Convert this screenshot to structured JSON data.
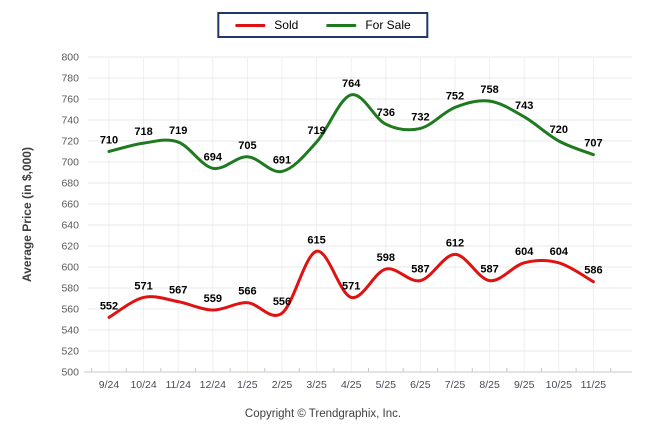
{
  "chart_data": {
    "type": "line",
    "title": "",
    "categories": [
      "9/24",
      "10/24",
      "11/24",
      "12/24",
      "1/25",
      "2/25",
      "3/25",
      "4/25",
      "5/25",
      "6/25",
      "7/25",
      "8/25",
      "9/25",
      "10/25",
      "11/25"
    ],
    "series": [
      {
        "name": "Sold",
        "color": "#e01111",
        "values": [
          552,
          571,
          567,
          559,
          566,
          556,
          615,
          571,
          598,
          587,
          612,
          587,
          604,
          604,
          586
        ]
      },
      {
        "name": "For Sale",
        "color": "#1f7a1f",
        "values": [
          710,
          718,
          719,
          694,
          705,
          691,
          719,
          764,
          736,
          732,
          752,
          758,
          743,
          720,
          707
        ]
      }
    ],
    "xlabel": "",
    "ylabel": "Average Price (in $,000)",
    "ylim": [
      500,
      800
    ],
    "ytick_step": 20,
    "grid": true,
    "smooth": true,
    "data_labels": true,
    "legend_position": "top-center",
    "colors": {
      "legend_border": "#1f3864",
      "gridline": "#e8e8e8",
      "vertical_gridline": "#efefef",
      "axis_line": "#c9c9c9",
      "ytick_text": "#595959",
      "xtick_text": "#454b57",
      "axis_title_text": "#3f3f3f",
      "data_label_text": "#000000"
    }
  },
  "footer": {
    "copyright": "Copyright © Trendgraphix, Inc."
  }
}
